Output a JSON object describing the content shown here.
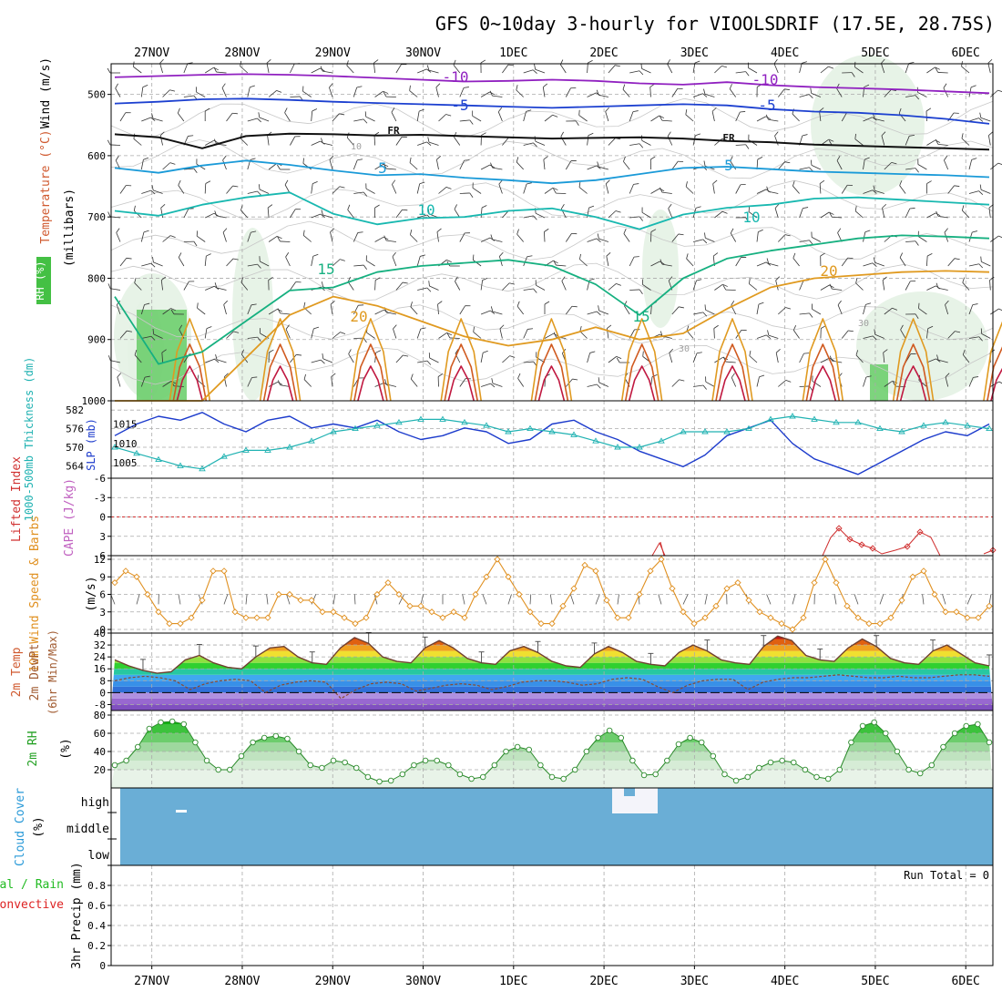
{
  "header": {
    "title": "GFS 0~10day 3-hourly for VIOOLSDRIF (17.5E, 28.75S)"
  },
  "colors": {
    "axis": "#000000",
    "grid": "#aaaaaa",
    "slp": "#1c3bcc",
    "thickness": "#20b2b2",
    "lifted_index": "#d03030",
    "cape": "#c060c0",
    "wind_speed": "#e09020",
    "temperature": "#704030",
    "dewpoint": "#704030",
    "rh_fill": "#27c827",
    "rh_light": "#e4f2e4",
    "cloud": "#6aaed6",
    "cloud_clear": "#f4f4fa",
    "precip_total": "#22bb22",
    "precip_convective": "#dd2222"
  },
  "chart_data": [
    {
      "type": "line",
      "panel": "upper-air",
      "x_ticks": [
        "27NOV",
        "28NOV",
        "29NOV",
        "30NOV",
        "1DEC",
        "2DEC",
        "3DEC",
        "4DEC",
        "5DEC",
        "6DEC"
      ],
      "ylabel_parts": [
        "Wind (m/s)",
        "Temperature (°C)",
        "RH (%)"
      ],
      "axis_unit": "(millibars)",
      "yticks": [
        "500",
        "600",
        "700",
        "800",
        "900",
        "1000"
      ],
      "ylim": [
        1000,
        450
      ],
      "isotherm_labels": [
        "-10",
        "-5",
        "FR",
        "5",
        "10",
        "15",
        "20"
      ],
      "rh_labels": [
        "10",
        "30"
      ],
      "isotherms": [
        {
          "label": "-10",
          "color": "#9020c0",
          "p": [
            472,
            470,
            468,
            467,
            468,
            470,
            473,
            476,
            479,
            478,
            476,
            478,
            482,
            484,
            480,
            485,
            488,
            490,
            492,
            495,
            498
          ]
        },
        {
          "label": "-5",
          "color": "#1c40d0",
          "p": [
            515,
            512,
            508,
            507,
            509,
            512,
            514,
            516,
            518,
            520,
            522,
            520,
            518,
            516,
            518,
            524,
            528,
            530,
            534,
            540,
            548
          ]
        },
        {
          "label": "FR",
          "color": "#111111",
          "p": [
            565,
            570,
            588,
            568,
            564,
            565,
            567,
            566,
            568,
            570,
            572,
            571,
            570,
            572,
            576,
            578,
            582,
            584,
            586,
            588,
            590
          ]
        },
        {
          "label": "5",
          "color": "#1a9ad8",
          "p": [
            620,
            628,
            616,
            608,
            615,
            624,
            632,
            630,
            636,
            640,
            645,
            640,
            630,
            620,
            618,
            622,
            626,
            628,
            630,
            632,
            635
          ]
        },
        {
          "label": "10",
          "color": "#18b8b0",
          "p": [
            690,
            698,
            680,
            668,
            660,
            695,
            712,
            702,
            700,
            690,
            686,
            700,
            720,
            696,
            685,
            680,
            670,
            668,
            672,
            676,
            680
          ]
        },
        {
          "label": "15",
          "color": "#16b080",
          "p": [
            830,
            940,
            920,
            870,
            820,
            815,
            790,
            780,
            775,
            770,
            780,
            810,
            860,
            800,
            768,
            755,
            745,
            735,
            730,
            732,
            735
          ]
        },
        {
          "label": "20",
          "color": "#e09a20",
          "p": [
            1000,
            1000,
            1000,
            930,
            860,
            830,
            845,
            870,
            895,
            910,
            900,
            880,
            900,
            890,
            850,
            815,
            800,
            795,
            790,
            788,
            790
          ]
        }
      ]
    },
    {
      "type": "line",
      "panel": "slp-thickness",
      "ylabel_parts": [
        "1000-500mb Thickness (dm)",
        "SLP (mb)"
      ],
      "left_ticks": [
        "582",
        "576",
        "570",
        "564"
      ],
      "right_ticks": [
        "1015",
        "1010",
        "1005"
      ],
      "series": [
        {
          "name": "SLP",
          "values": [
            1012,
            1015,
            1017,
            1016,
            1018,
            1015,
            1013,
            1016,
            1017,
            1014,
            1015,
            1014,
            1016,
            1013,
            1011,
            1012,
            1014,
            1013,
            1010,
            1011,
            1015,
            1016,
            1013,
            1011,
            1008,
            1006,
            1004,
            1007,
            1012,
            1014,
            1016,
            1010,
            1006,
            1004,
            1002,
            1005,
            1008,
            1011,
            1013,
            1012,
            1015
          ]
        },
        {
          "name": "Thickness",
          "values": [
            570,
            568,
            566,
            564,
            563,
            567,
            569,
            569,
            570,
            572,
            575,
            576,
            577,
            578,
            579,
            579,
            578,
            577,
            575,
            576,
            575,
            574,
            572,
            570,
            570,
            572,
            575,
            575,
            575,
            576,
            579,
            580,
            579,
            578,
            578,
            576,
            575,
            577,
            578,
            577,
            576
          ]
        }
      ]
    },
    {
      "type": "line",
      "panel": "instability",
      "ylabel_parts": [
        "Lifted Index",
        "CAPE (J/kg)"
      ],
      "yticks": [
        "-6",
        "-3",
        "0",
        "3",
        "6"
      ],
      "ylim": [
        -6,
        6
      ],
      "series": [
        {
          "name": "Lifted Index",
          "points": [
            [
              19.9,
              4.1
            ],
            [
              20.0,
              3.6
            ],
            [
              20.1,
              4.0
            ],
            [
              25.0,
              3.8
            ],
            [
              25.2,
              2.0
            ],
            [
              25.4,
              2.5
            ],
            [
              25.6,
              3.2
            ],
            [
              25.8,
              3.5
            ],
            [
              26.0,
              4.2
            ],
            [
              26.2,
              3.3
            ],
            [
              26.4,
              2.3
            ],
            [
              26.7,
              3.0
            ],
            [
              27.2,
              5.5
            ]
          ]
        }
      ]
    },
    {
      "type": "line",
      "panel": "wind10m",
      "ylabel_parts": [
        "10m Wind Speed & Barbs",
        "(m/s)"
      ],
      "yticks": [
        "0",
        "3",
        "6",
        "9",
        "12"
      ],
      "ylim": [
        0,
        12
      ],
      "series": [
        {
          "name": "Speed",
          "values": [
            8,
            10,
            9,
            6,
            3,
            1,
            1,
            2,
            5,
            10,
            10,
            3,
            2,
            2,
            2,
            6,
            6,
            5,
            5,
            3,
            3,
            2,
            1,
            2,
            6,
            8,
            6,
            4,
            4,
            3,
            2,
            3,
            2,
            6,
            9,
            12,
            9,
            6,
            3,
            1,
            1,
            4,
            7,
            11,
            10,
            5,
            2,
            2,
            6,
            10,
            12,
            7,
            3,
            1,
            2,
            4,
            7,
            8,
            5,
            3,
            2,
            1,
            0,
            2,
            8,
            12,
            8,
            4,
            2,
            1,
            1,
            2,
            5,
            9,
            10,
            6,
            3,
            3,
            2,
            2,
            4
          ]
        }
      ]
    },
    {
      "type": "area",
      "panel": "temperature",
      "ylabel_parts": [
        "2m Temp",
        "2m DewPt",
        "(6hr Min/Max)"
      ],
      "yticks": [
        "40",
        "32",
        "24",
        "16",
        "8",
        "0",
        "-8"
      ],
      "ylim": [
        -12,
        40
      ],
      "series": [
        {
          "name": "2m Temp",
          "values": [
            22,
            18,
            15,
            13,
            14,
            22,
            25,
            20,
            17,
            16,
            24,
            30,
            31,
            24,
            20,
            19,
            30,
            37,
            33,
            24,
            21,
            20,
            30,
            35,
            30,
            23,
            20,
            19,
            28,
            31,
            27,
            21,
            18,
            17,
            26,
            31,
            27,
            21,
            19,
            18,
            27,
            32,
            28,
            22,
            20,
            19,
            31,
            38,
            35,
            25,
            22,
            21,
            30,
            36,
            31,
            23,
            20,
            19,
            28,
            32,
            26,
            20,
            18
          ]
        },
        {
          "name": "2m DewPt",
          "values": [
            8,
            10,
            11,
            10,
            8,
            2,
            6,
            8,
            9,
            8,
            0,
            5,
            7,
            8,
            7,
            -4,
            2,
            6,
            7,
            6,
            1,
            3,
            5,
            6,
            5,
            2,
            4,
            7,
            8,
            8,
            7,
            5,
            6,
            9,
            10,
            9,
            4,
            0,
            5,
            8,
            9,
            9,
            2,
            7,
            9,
            10,
            10,
            11,
            12,
            11,
            10,
            10,
            11,
            10,
            10,
            11,
            12,
            12,
            11
          ]
        }
      ]
    },
    {
      "type": "area",
      "panel": "rh2m",
      "ylabel_parts": [
        "2m RH",
        "(%)"
      ],
      "yticks": [
        "80",
        "60",
        "40",
        "20"
      ],
      "ylim": [
        0,
        85
      ],
      "series": [
        {
          "name": "2m RH",
          "values": [
            25,
            30,
            45,
            65,
            72,
            73,
            70,
            50,
            30,
            20,
            20,
            35,
            50,
            55,
            57,
            54,
            40,
            25,
            22,
            30,
            28,
            22,
            12,
            7,
            8,
            15,
            25,
            30,
            30,
            25,
            15,
            10,
            12,
            25,
            40,
            45,
            42,
            25,
            12,
            10,
            20,
            40,
            55,
            63,
            55,
            30,
            14,
            15,
            30,
            48,
            55,
            50,
            35,
            15,
            8,
            12,
            22,
            28,
            30,
            28,
            20,
            12,
            10,
            20,
            50,
            68,
            72,
            60,
            40,
            20,
            16,
            25,
            45,
            60,
            68,
            70,
            50
          ]
        }
      ]
    },
    {
      "type": "heatmap",
      "panel": "cloud",
      "ylabel_parts": [
        "Cloud Cover",
        "(%)"
      ],
      "levels": [
        "high",
        "middle",
        "low"
      ]
    },
    {
      "type": "bar",
      "panel": "precip",
      "ylabel_parts": [
        "Total / Rain",
        "Convective",
        "3hr Precip (mm)"
      ],
      "yticks": [
        "0.8",
        "0.6",
        "0.4",
        "0.2",
        "0"
      ],
      "ylim": [
        0,
        1
      ],
      "run_total": "Run Total = 0"
    }
  ]
}
